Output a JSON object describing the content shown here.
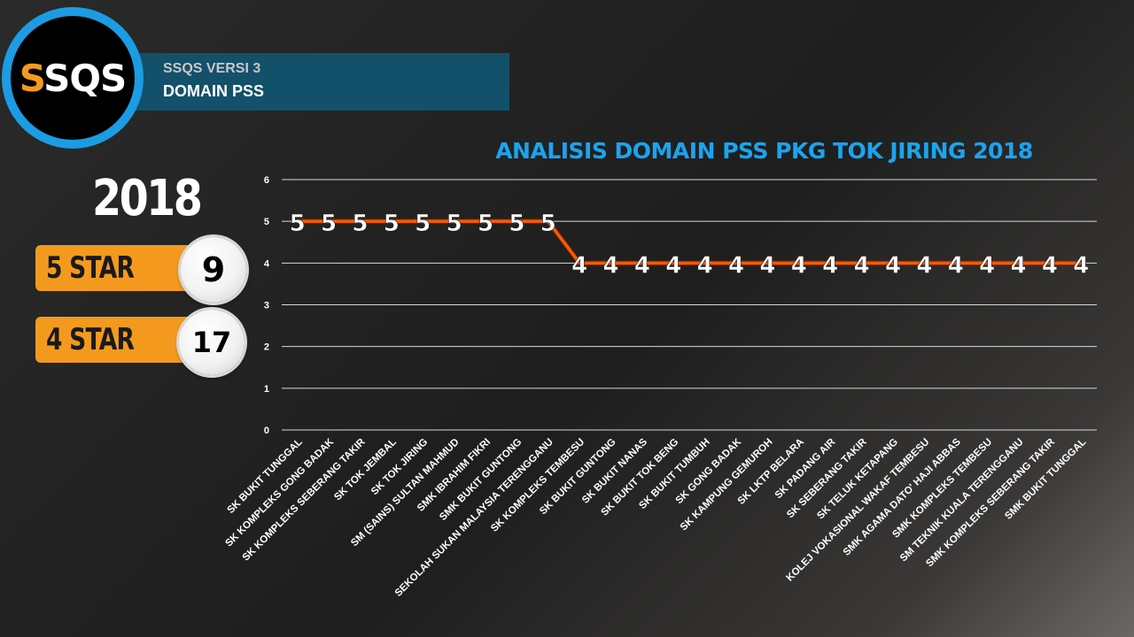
{
  "logo": {
    "s_letter": "S",
    "rest": "SQS"
  },
  "banner": {
    "line1": "SSQS VERSI 3",
    "line2": "DOMAIN PSS"
  },
  "year": "2018",
  "stars": [
    {
      "label": "5 STAR",
      "count": "9"
    },
    {
      "label": "4 STAR",
      "count": "17"
    }
  ],
  "colors": {
    "accent_orange": "#f39a1e",
    "brand_blue": "#1b9ce3",
    "title_blue": "#1ba4ef",
    "banner_teal": "#13506a"
  },
  "chart_data": {
    "type": "line",
    "title": "ANALISIS DOMAIN PSS PKG TOK JIRING 2018",
    "xlabel": "",
    "ylabel": "",
    "ylim": [
      0,
      6
    ],
    "yticks": [
      0,
      1,
      2,
      3,
      4,
      5,
      6
    ],
    "grid": true,
    "legend": "none",
    "categories": [
      "SK BUKIT TUNGGAL",
      "SK KOMPLEKS GONG BADAK",
      "SK KOMPLEKS SEBERANG TAKIR",
      "SK TOK JEMBAL",
      "SK TOK JIRING",
      "SM (SAINS) SULTAN MAHMUD",
      "SMK IBRAHIM FIKRI",
      "SMK BUKIT GUNTONG",
      "SEKOLAH SUKAN MALAYSIA TERENGGANU",
      "SK KOMPLEKS TEMBESU",
      "SK BUKIT GUNTONG",
      "SK BUKIT NANAS",
      "SK BUKIT TOK BENG",
      "SK BUKIT TUMBUH",
      "SK GONG BADAK",
      "SK KAMPUNG GEMUROH",
      "SK LKTP BELARA",
      "SK PADANG AIR",
      "SK SEBERANG TAKIR",
      "SK TELUK KETAPANG",
      "KOLEJ VOKASIONAL WAKAF TEMBESU",
      "SMK AGAMA DATO' HAJI ABBAS",
      "SMK KOMPLEKS TEMBESU",
      "SM TEKNIK KUALA TERENGGANU",
      "SMK KOMPLEKS SEBERANG TAKIR",
      "SMK BUKIT TUNGGAL"
    ],
    "series": [
      {
        "values": [
          5,
          5,
          5,
          5,
          5,
          5,
          5,
          5,
          5,
          4,
          4,
          4,
          4,
          4,
          4,
          4,
          4,
          4,
          4,
          4,
          4,
          4,
          4,
          4,
          4,
          4
        ],
        "color": "#ff5a00"
      }
    ]
  }
}
